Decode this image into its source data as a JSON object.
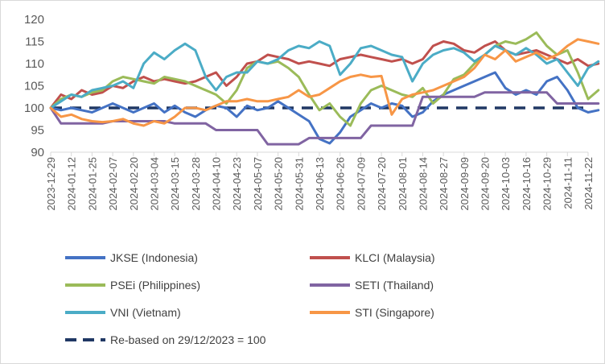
{
  "chart_data": {
    "type": "line",
    "title": "",
    "xlabel": "",
    "ylabel": "",
    "ylim": [
      90,
      120
    ],
    "y_ticks": [
      90,
      95,
      100,
      105,
      110,
      115,
      120
    ],
    "x_tick_labels": [
      "2023-12-29",
      "2024-01-12",
      "2024-01-25",
      "2024-02-07",
      "2024-02-20",
      "2024-03-04",
      "2024-03-15",
      "2024-03-28",
      "2024-04-10",
      "2024-04-23",
      "2024-05-07",
      "2024-05-20",
      "2024-05-31",
      "2024-06-13",
      "2024-06-26",
      "2024-07-09",
      "2024-07-20",
      "2024-08-01",
      "2024-08-14",
      "2024-08-27",
      "2024-09-09",
      "2024-09-20",
      "2024-10-03",
      "2024-10-16",
      "2024-10-29",
      "2024-11-11",
      "2024-11-22"
    ],
    "x": [
      0,
      0.5,
      1,
      1.5,
      2,
      2.5,
      3,
      3.5,
      4,
      4.5,
      5,
      5.5,
      6,
      6.5,
      7,
      7.5,
      8,
      8.5,
      9,
      9.5,
      10,
      10.5,
      11,
      11.5,
      12,
      12.5,
      13,
      13.5,
      14,
      14.5,
      15,
      15.5,
      16,
      16.5,
      17,
      17.5,
      18,
      18.5,
      19,
      19.5,
      20,
      20.5,
      21,
      21.5,
      22,
      22.5,
      23,
      23.5,
      24,
      24.5,
      25,
      25.5,
      26,
      26.5
    ],
    "baseline": {
      "name": "Re-based on 29/12/2023 = 100",
      "value": 100,
      "color": "#203864"
    },
    "legend_position": "bottom",
    "series": [
      {
        "name": "JKSE (Indonesia)",
        "color": "#4472C4",
        "values": [
          100,
          99.5,
          100,
          99.5,
          99,
          100,
          101,
          100,
          99,
          100,
          101,
          99,
          100.5,
          99,
          98,
          99.5,
          100.5,
          100,
          98,
          100.5,
          99.5,
          100,
          101.5,
          100,
          98.5,
          97,
          93,
          92,
          94.5,
          98,
          99.5,
          101,
          100,
          101,
          100.5,
          98,
          99,
          101.5,
          103,
          104,
          105,
          106,
          107,
          108,
          104.5,
          103,
          104,
          103,
          106,
          107,
          104,
          100,
          99,
          99.5
        ]
      },
      {
        "name": "KLCI (Malaysia)",
        "color": "#C0504D",
        "values": [
          100,
          103,
          102,
          104,
          103,
          103.5,
          105,
          104.5,
          106,
          107,
          106,
          106.5,
          106,
          105.5,
          106,
          107,
          108,
          105,
          107,
          110,
          110.5,
          112,
          111.5,
          111,
          110,
          110.5,
          110,
          109.5,
          111,
          111.5,
          112,
          111.5,
          111,
          110.5,
          111,
          110,
          111,
          114,
          115,
          114.5,
          113,
          112.5,
          114,
          115,
          113,
          112,
          112.5,
          113,
          112,
          111,
          110,
          111,
          109.5,
          110
        ]
      },
      {
        "name": "PSEi (Philippines)",
        "color": "#9BBB59",
        "values": [
          100,
          102,
          103,
          102.5,
          103.5,
          104,
          106,
          107,
          106.5,
          106,
          105.5,
          107,
          106.5,
          106,
          105,
          104,
          103,
          101,
          104,
          109,
          110.5,
          110,
          110.5,
          109,
          107,
          103,
          99.5,
          101,
          98,
          96,
          101,
          104,
          105,
          104,
          103,
          102.5,
          104.5,
          101,
          103,
          106.5,
          107.5,
          110,
          112,
          114,
          115,
          114.5,
          115.5,
          117,
          114,
          112,
          113,
          108,
          102,
          104
        ]
      },
      {
        "name": "SETI (Thailand)",
        "color": "#8064A2",
        "values": [
          100,
          96.5,
          96.5,
          96.5,
          96.5,
          96.5,
          97,
          97,
          97,
          97,
          97,
          97,
          96.5,
          96.5,
          96.5,
          96.5,
          95,
          95,
          95,
          95,
          95,
          91.8,
          91.8,
          91.8,
          91.8,
          93.2,
          93.2,
          93.2,
          93.2,
          93.2,
          93.2,
          96,
          96,
          96,
          96,
          96,
          102.5,
          102.5,
          102.5,
          102.5,
          102.5,
          102.5,
          103.5,
          103.5,
          103.5,
          103.5,
          103.5,
          103.5,
          103.5,
          101,
          101,
          101,
          101,
          101
        ]
      },
      {
        "name": "VNI (Vietnam)",
        "color": "#4BACC6",
        "values": [
          100,
          101.5,
          103,
          102.5,
          104,
          104.5,
          105,
          106,
          104.5,
          110,
          112.5,
          111,
          113,
          114.5,
          113,
          107,
          104,
          107,
          108,
          108,
          110.5,
          110,
          111,
          113,
          114,
          113.5,
          115,
          114,
          107.5,
          110,
          113.5,
          114,
          113,
          112,
          111.5,
          106,
          110,
          112,
          113,
          113.5,
          112.5,
          110.5,
          112,
          114,
          113,
          112,
          113.5,
          112,
          110,
          111,
          108,
          105,
          109,
          110.5
        ]
      },
      {
        "name": "STI (Singapore)",
        "color": "#F79646",
        "values": [
          100,
          98,
          98.5,
          97.5,
          97,
          96.8,
          97,
          97.5,
          96.5,
          96,
          97,
          96.5,
          98,
          100,
          100,
          99.5,
          100.5,
          101.5,
          101.5,
          102,
          101.5,
          101.5,
          102,
          102.5,
          104,
          102.5,
          103,
          104.5,
          106,
          107,
          107.5,
          107,
          107.2,
          98.5,
          102,
          103,
          103.5,
          104,
          105,
          106,
          107,
          109,
          112,
          111,
          113,
          110.5,
          111.5,
          112.5,
          111,
          112,
          114,
          115.5,
          115,
          114.5
        ]
      }
    ]
  }
}
